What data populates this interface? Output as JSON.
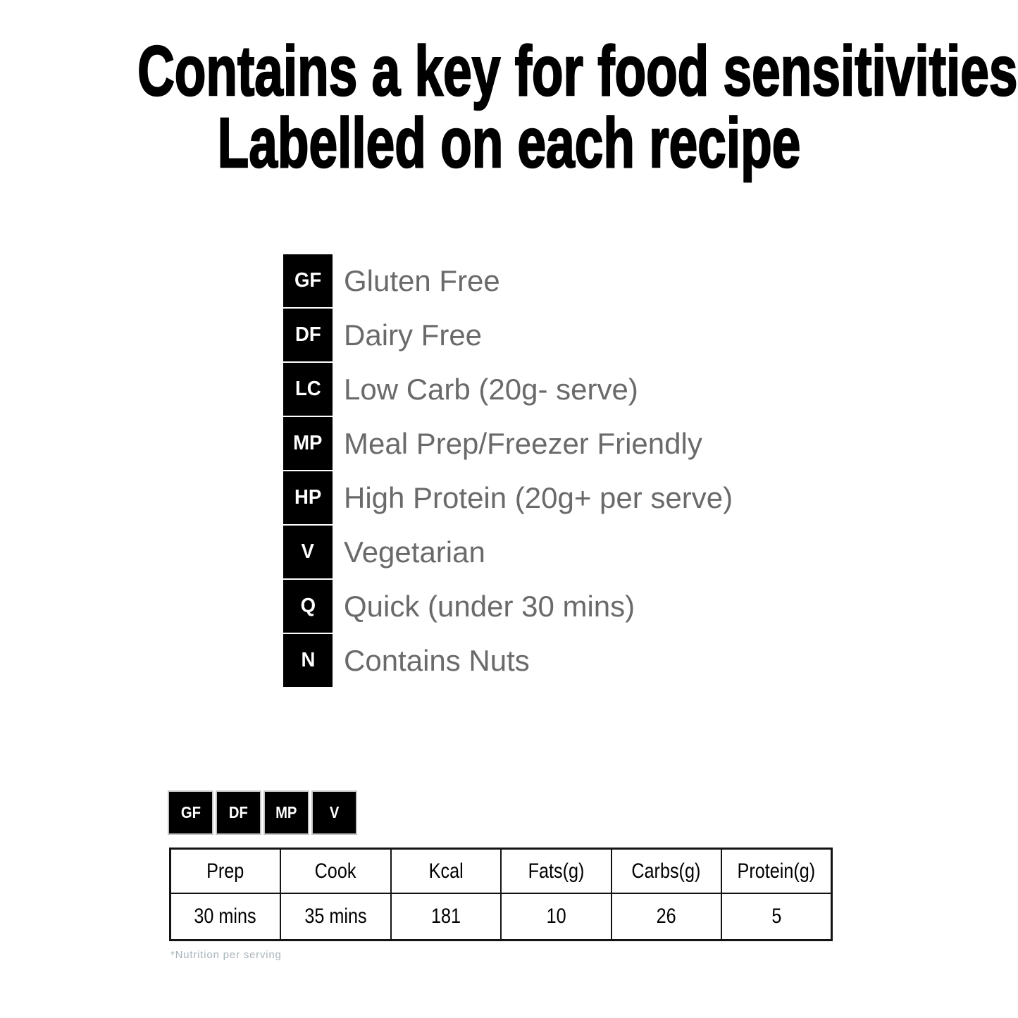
{
  "page": {
    "title_line1": "Contains a key for food sensitivities",
    "title_line2": "Labelled on each recipe"
  },
  "key": {
    "items": [
      {
        "code": "GF",
        "label": "Gluten Free"
      },
      {
        "code": "DF",
        "label": "Dairy Free"
      },
      {
        "code": "LC",
        "label": "Low Carb (20g- serve)"
      },
      {
        "code": "MP",
        "label": "Meal Prep/Freezer Friendly"
      },
      {
        "code": "HP",
        "label": "High Protein (20g+ per serve)"
      },
      {
        "code": "V",
        "label": "Vegetarian"
      },
      {
        "code": "Q",
        "label": "Quick (under 30 mins)"
      },
      {
        "code": "N",
        "label": "Contains Nuts"
      }
    ]
  },
  "example": {
    "badges": [
      {
        "code": "GF"
      },
      {
        "code": "DF"
      },
      {
        "code": "MP"
      },
      {
        "code": "V"
      }
    ],
    "nutrition_table": {
      "headers": [
        "Prep",
        "Cook",
        "Kcal",
        "Fats(g)",
        "Carbs(g)",
        "Protein(g)"
      ],
      "values": [
        "30 mins",
        "35 mins",
        "181",
        "10",
        "26",
        "5"
      ]
    },
    "footnote": "*Nutrition per serving"
  },
  "colors": {
    "page_bg": "#ffffff",
    "title_text": "#000000",
    "badge_bg": "#000000",
    "badge_text": "#ffffff",
    "key_label_text": "#6a6a6a",
    "mini_badge_border": "#c4c4c4",
    "table_border": "#141414",
    "table_text": "#000000",
    "footnote_text": "#a7b3bb"
  }
}
